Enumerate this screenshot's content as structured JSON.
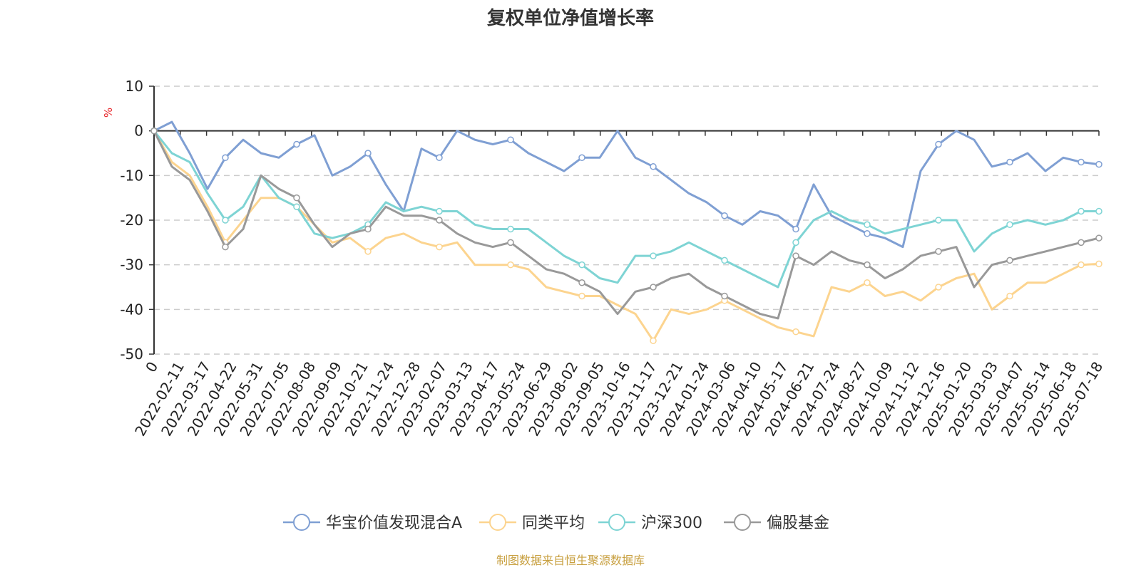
{
  "chart_data": {
    "type": "line",
    "title": "复权单位净值增长率",
    "unit": "%",
    "source": "制图数据来自恒生聚源数据库",
    "ylim": [
      -50,
      10
    ],
    "y_ticks": [
      10,
      0,
      -10,
      -20,
      -30,
      -40,
      -50
    ],
    "grid": true,
    "legend_position": "bottom",
    "x_ticks": [
      "0",
      "2022-02-11",
      "2022-03-17",
      "2022-04-22",
      "2022-05-31",
      "2022-07-05",
      "2022-08-08",
      "2022-09-09",
      "2022-10-21",
      "2022-11-24",
      "2022-12-28",
      "2023-02-07",
      "2023-03-13",
      "2023-04-17",
      "2023-05-24",
      "2023-06-29",
      "2023-08-02",
      "2023-09-05",
      "2023-10-16",
      "2023-11-17",
      "2023-12-21",
      "2024-01-24",
      "2024-03-06",
      "2024-04-10",
      "2024-05-17",
      "2024-06-21",
      "2024-07-24",
      "2024-08-27",
      "2024-10-09",
      "2024-11-12",
      "2024-12-16",
      "2025-01-20",
      "2025-03-03",
      "2025-04-07",
      "2025-05-14",
      "2025-06-18",
      "2025-07-18"
    ],
    "series": [
      {
        "name": "华宝价值发现混合A",
        "color": "#7f9fd3",
        "values": [
          0,
          2,
          -5,
          -13,
          -6,
          -2,
          -5,
          -6,
          -3,
          -1,
          -10,
          -8,
          -5,
          -12,
          -18,
          -4,
          -6,
          0,
          -2,
          -3,
          -2,
          -5,
          -7,
          -9,
          -6,
          -6,
          0,
          -6,
          -8,
          -11,
          -14,
          -16,
          -19,
          -21,
          -18,
          -19,
          -22,
          -12,
          -19,
          -21,
          -23,
          -24,
          -26,
          -9,
          -3,
          0,
          -2,
          -8,
          -7,
          -5,
          -9,
          -6,
          -7,
          -7.5
        ]
      },
      {
        "name": "同类平均",
        "color": "#fcd48f",
        "values": [
          0,
          -7,
          -10,
          -17,
          -25,
          -20,
          -15,
          -15,
          -17,
          -21,
          -25,
          -24,
          -27,
          -24,
          -23,
          -25,
          -26,
          -25,
          -30,
          -30,
          -30,
          -31,
          -35,
          -36,
          -37,
          -37,
          -39,
          -41,
          -47,
          -40,
          -41,
          -40,
          -38,
          -40,
          -42,
          -44,
          -45,
          -46,
          -35,
          -36,
          -34,
          -37,
          -36,
          -38,
          -35,
          -33,
          -32,
          -40,
          -37,
          -34,
          -34,
          -32,
          -30,
          -29.8
        ]
      },
      {
        "name": "沪深300",
        "color": "#7ed4d4",
        "values": [
          0,
          -5,
          -7,
          -14,
          -20,
          -17,
          -10,
          -15,
          -17,
          -23,
          -24,
          -23,
          -21,
          -16,
          -18,
          -17,
          -18,
          -18,
          -21,
          -22,
          -22,
          -22,
          -25,
          -28,
          -30,
          -33,
          -34,
          -28,
          -28,
          -27,
          -25,
          -27,
          -29,
          -31,
          -33,
          -35,
          -25,
          -20,
          -18,
          -20,
          -21,
          -23,
          -22,
          -21,
          -20,
          -20,
          -27,
          -23,
          -21,
          -20,
          -21,
          -20,
          -18,
          -18
        ]
      },
      {
        "name": "偏股基金",
        "color": "#999999",
        "values": [
          0,
          -8,
          -11,
          -18,
          -26,
          -22,
          -10,
          -13,
          -15,
          -21,
          -26,
          -23,
          -22,
          -17,
          -19,
          -19,
          -20,
          -23,
          -25,
          -26,
          -25,
          -28,
          -31,
          -32,
          -34,
          -36,
          -41,
          -36,
          -35,
          -33,
          -32,
          -35,
          -37,
          -39,
          -41,
          -42,
          -28,
          -30,
          -27,
          -29,
          -30,
          -33,
          -31,
          -28,
          -27,
          -26,
          -35,
          -30,
          -29,
          -28,
          -27,
          -26,
          -25,
          -24
        ]
      }
    ]
  }
}
